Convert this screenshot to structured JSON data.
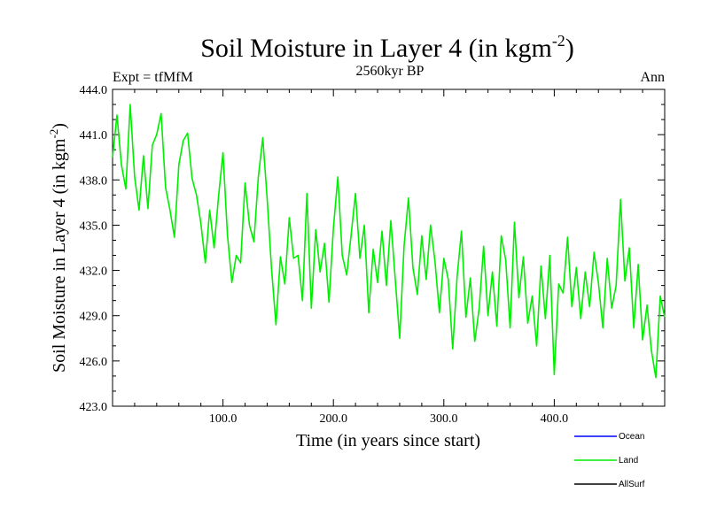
{
  "chart_data": {
    "type": "line",
    "title": "Soil Moisture in Layer 4 (in kgm",
    "title_sup": "-2",
    "title_close": ")",
    "subtitle_left": "Expt = tfMfM",
    "subtitle_center": "2560kyr BP",
    "subtitle_right": "Ann",
    "xlabel": "Time (in years since start)",
    "ylabel": "Soil Moisture in Layer 4 (in kgm",
    "ylabel_sup": "-2",
    "ylabel_close": ")",
    "xlim": [
      0,
      500
    ],
    "ylim": [
      423,
      444
    ],
    "xticks": [
      100,
      200,
      300,
      400
    ],
    "xtick_labels": [
      "100.0",
      "200.0",
      "300.0",
      "400.0"
    ],
    "yticks": [
      423,
      426,
      429,
      432,
      435,
      438,
      441,
      444
    ],
    "ytick_labels": [
      "423.0",
      "426.0",
      "429.0",
      "432.0",
      "435.0",
      "438.0",
      "441.0",
      "444.0"
    ],
    "series": [
      {
        "name": "Land",
        "color": "#00ee00",
        "x": [
          0,
          4,
          8,
          12,
          16,
          20,
          24,
          28,
          32,
          36,
          40,
          44,
          48,
          52,
          56,
          60,
          64,
          68,
          72,
          76,
          80,
          84,
          88,
          92,
          96,
          100,
          104,
          108,
          112,
          116,
          120,
          124,
          128,
          132,
          136,
          140,
          144,
          148,
          152,
          156,
          160,
          164,
          168,
          172,
          176,
          180,
          184,
          188,
          192,
          196,
          200,
          204,
          208,
          212,
          216,
          220,
          224,
          228,
          232,
          236,
          240,
          244,
          248,
          252,
          256,
          260,
          264,
          268,
          272,
          276,
          280,
          284,
          288,
          292,
          296,
          300,
          304,
          308,
          312,
          316,
          320,
          324,
          328,
          332,
          336,
          340,
          344,
          348,
          352,
          356,
          360,
          364,
          368,
          372,
          376,
          380,
          384,
          388,
          392,
          396,
          400,
          404,
          408,
          412,
          416,
          420,
          424,
          428,
          432,
          436,
          440,
          444,
          448,
          452,
          456,
          460,
          464,
          468,
          472,
          476,
          480,
          484,
          488,
          492,
          496,
          500
        ],
        "values": [
          439.5,
          442.3,
          439.0,
          437.4,
          443.0,
          438.2,
          436.0,
          439.6,
          436.1,
          440.3,
          441.0,
          442.4,
          437.5,
          436.0,
          434.2,
          439.0,
          440.6,
          441.1,
          438.1,
          437.0,
          435.1,
          432.5,
          436.0,
          433.5,
          436.9,
          439.8,
          434.4,
          431.2,
          433.0,
          432.5,
          437.8,
          435.0,
          433.9,
          438.2,
          440.8,
          436.8,
          432.1,
          428.4,
          432.9,
          431.1,
          435.5,
          432.8,
          433.0,
          430.0,
          437.1,
          429.5,
          434.7,
          431.9,
          433.8,
          429.9,
          434.8,
          438.2,
          433.0,
          431.7,
          434.3,
          437.1,
          432.8,
          435.0,
          429.2,
          433.4,
          431.2,
          434.6,
          431.0,
          435.3,
          431.4,
          427.5,
          433.6,
          436.8,
          432.2,
          430.4,
          434.3,
          431.4,
          435.0,
          432.6,
          429.2,
          432.8,
          431.4,
          426.8,
          431.6,
          434.6,
          428.9,
          431.5,
          427.3,
          429.5,
          433.6,
          429.0,
          431.9,
          428.3,
          434.3,
          432.7,
          428.2,
          435.2,
          430.2,
          432.9,
          428.5,
          430.3,
          427.0,
          432.3,
          428.8,
          433.0,
          425.1,
          431.1,
          430.5,
          434.2,
          429.6,
          432.2,
          428.8,
          431.9,
          429.6,
          433.2,
          431.2,
          428.2,
          432.8,
          429.5,
          431.0,
          436.7,
          431.3,
          433.5,
          428.2,
          432.4,
          427.4,
          429.7,
          426.7,
          424.9,
          430.3,
          428.9
        ]
      }
    ],
    "legend": [
      {
        "label": "Ocean",
        "color": "#0000ff"
      },
      {
        "label": "Land",
        "color": "#00ee00"
      },
      {
        "label": "AllSurf",
        "color": "#000000"
      }
    ]
  }
}
